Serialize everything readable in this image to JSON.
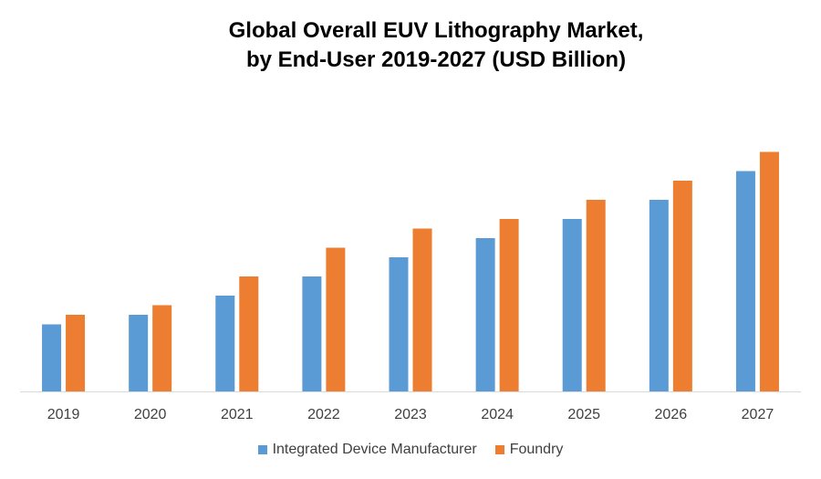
{
  "chart_data": {
    "type": "bar",
    "title_line1": "Global Overall EUV Lithography Market,",
    "title_line2": "by End-User 2019-2027 (USD Billion)",
    "categories": [
      "2019",
      "2020",
      "2021",
      "2022",
      "2023",
      "2024",
      "2025",
      "2026",
      "2027"
    ],
    "series": [
      {
        "name": "Integrated Device Manufacturer",
        "color": "#5B9BD5",
        "values": [
          3.5,
          4.0,
          5.0,
          6.0,
          7.0,
          8.0,
          9.0,
          10.0,
          11.5
        ]
      },
      {
        "name": "Foundry",
        "color": "#ED7D31",
        "values": [
          4.0,
          4.5,
          6.0,
          7.5,
          8.5,
          9.0,
          10.0,
          11.0,
          12.5
        ]
      }
    ],
    "xlabel": "",
    "ylabel": "",
    "ylim": [
      0,
      14
    ],
    "grid": false,
    "y_axis_visible": false,
    "legend_position": "bottom"
  }
}
